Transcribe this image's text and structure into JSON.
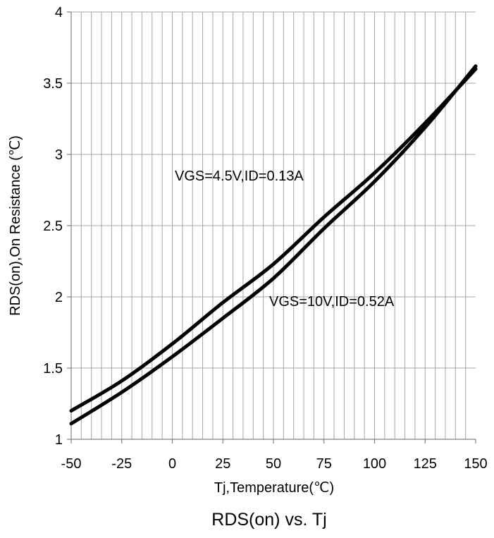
{
  "chart_data": {
    "type": "line",
    "title": "RDS(on) vs. Tj",
    "xlabel": "Tj,Temperature(℃)",
    "ylabel": "RDS(on),On Resistance (℃)",
    "xlim": [
      -50,
      150
    ],
    "ylim": [
      1,
      4
    ],
    "x_ticks": [
      -50,
      -25,
      0,
      25,
      50,
      75,
      100,
      125,
      150
    ],
    "x_tick_labels": [
      "-50",
      "-25",
      "0",
      "25",
      "50",
      "75",
      "100",
      "125",
      "150"
    ],
    "y_ticks": [
      1,
      1.5,
      2,
      2.5,
      3,
      3.5,
      4
    ],
    "y_tick_labels": [
      "1",
      "1.5",
      "2",
      "2.5",
      "3",
      "3.5",
      "4"
    ],
    "x_minor_step": 5,
    "grid": true,
    "legend": "none",
    "series": [
      {
        "label": "VGS=4.5V,ID=0.13A",
        "color": "#000000",
        "x": [
          -50,
          -25,
          0,
          25,
          50,
          75,
          100,
          125,
          150
        ],
        "y": [
          1.2,
          1.41,
          1.67,
          1.96,
          2.23,
          2.56,
          2.87,
          3.22,
          3.6
        ]
      },
      {
        "label": "VGS=10V,ID=0.52A",
        "color": "#000000",
        "x": [
          -50,
          -25,
          0,
          25,
          50,
          75,
          100,
          125,
          150
        ],
        "y": [
          1.11,
          1.33,
          1.58,
          1.85,
          2.13,
          2.48,
          2.81,
          3.19,
          3.62
        ]
      }
    ],
    "grid_color": "#a6a6a6",
    "axis_color": "#808080"
  }
}
